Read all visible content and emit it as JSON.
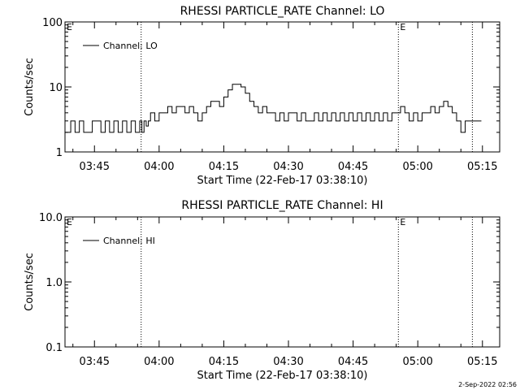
{
  "footer_date": "2-Sep-2022 02:56",
  "chart_data": [
    {
      "type": "line",
      "title": "RHESSI PARTICLE_RATE Channel: LO",
      "xlabel": "Start Time (22-Feb-17 03:38:10)",
      "ylabel": "Counts/sec",
      "yscale": "log",
      "ylim": [
        1,
        100
      ],
      "yticks": [
        "1",
        "10",
        "100"
      ],
      "xlim": [
        "03:38:10",
        "05:19:00"
      ],
      "xticks": [
        "03:45",
        "04:00",
        "04:15",
        "04:30",
        "04:45",
        "05:00",
        "05:15"
      ],
      "grid": false,
      "legend": "top-left",
      "event_lines": [
        "03:55:50",
        "04:55:30",
        "05:12:40"
      ],
      "event_markers": [
        {
          "x": "03:38:10",
          "label": "E"
        },
        {
          "x": "04:55:30",
          "label": "E"
        }
      ],
      "series": [
        {
          "name": "Channel: LO",
          "color": "#000000",
          "x": [
            "03:38:10",
            "03:39:30",
            "03:40:30",
            "03:41:30",
            "03:42:30",
            "03:43:30",
            "03:44:30",
            "03:45:30",
            "03:46:30",
            "03:47:30",
            "03:48:30",
            "03:49:30",
            "03:50:30",
            "03:51:30",
            "03:52:30",
            "03:53:30",
            "03:54:30",
            "03:55:30",
            "03:56:00",
            "03:56:30",
            "03:57:00",
            "03:57:30",
            "03:58:00",
            "03:59:00",
            "04:00:00",
            "04:01:00",
            "04:02:00",
            "04:03:00",
            "04:04:00",
            "04:05:00",
            "04:06:00",
            "04:07:00",
            "04:08:00",
            "04:09:00",
            "04:10:00",
            "04:11:00",
            "04:12:00",
            "04:13:00",
            "04:14:00",
            "04:15:00",
            "04:16:00",
            "04:17:00",
            "04:18:00",
            "04:19:00",
            "04:20:00",
            "04:21:00",
            "04:22:00",
            "04:23:00",
            "04:24:00",
            "04:25:00",
            "04:26:00",
            "04:27:00",
            "04:28:00",
            "04:29:00",
            "04:30:00",
            "04:31:00",
            "04:32:00",
            "04:33:00",
            "04:34:00",
            "04:35:00",
            "04:36:00",
            "04:37:00",
            "04:38:00",
            "04:39:00",
            "04:40:00",
            "04:41:00",
            "04:42:00",
            "04:43:00",
            "04:44:00",
            "04:45:00",
            "04:46:00",
            "04:47:00",
            "04:48:00",
            "04:49:00",
            "04:50:00",
            "04:51:00",
            "04:52:00",
            "04:53:00",
            "04:54:00",
            "04:55:00",
            "04:56:00",
            "04:57:00",
            "04:58:00",
            "04:59:00",
            "05:00:00",
            "05:01:00",
            "05:02:00",
            "05:03:00",
            "05:04:00",
            "05:05:00",
            "05:06:00",
            "05:07:00",
            "05:08:00",
            "05:09:00",
            "05:10:00",
            "05:11:00",
            "05:12:00",
            "05:13:00",
            "05:14:00"
          ],
          "y": [
            2,
            3,
            2,
            3,
            2,
            2,
            3,
            3,
            2,
            3,
            2,
            3,
            2,
            3,
            2,
            3,
            2,
            3,
            2,
            3,
            2.5,
            3,
            4,
            3,
            4,
            4,
            5,
            4,
            5,
            5,
            4,
            5,
            4,
            3,
            4,
            5,
            6,
            6,
            5,
            7,
            9,
            11,
            11,
            10,
            8,
            6,
            5,
            4,
            5,
            4,
            4,
            3,
            4,
            3,
            4,
            4,
            3,
            4,
            3,
            3,
            4,
            3,
            4,
            3,
            4,
            3,
            4,
            3,
            4,
            3,
            4,
            3,
            4,
            3,
            4,
            3,
            4,
            3,
            4,
            4,
            5,
            4,
            3,
            4,
            3,
            4,
            4,
            5,
            4,
            5,
            6,
            5,
            4,
            3,
            2,
            3,
            3,
            3,
            3
          ]
        }
      ]
    },
    {
      "type": "line",
      "title": "RHESSI PARTICLE_RATE Channel: HI",
      "xlabel": "Start Time (22-Feb-17 03:38:10)",
      "ylabel": "Counts/sec",
      "yscale": "log",
      "ylim": [
        0.1,
        10
      ],
      "yticks": [
        "0.1",
        "1.0",
        "10.0"
      ],
      "xlim": [
        "03:38:10",
        "05:19:00"
      ],
      "xticks": [
        "03:45",
        "04:00",
        "04:15",
        "04:30",
        "04:45",
        "05:00",
        "05:15"
      ],
      "grid": false,
      "legend": "top-left",
      "event_lines": [
        "03:55:50",
        "04:55:30",
        "05:12:40"
      ],
      "event_markers": [
        {
          "x": "03:38:10",
          "label": "E"
        },
        {
          "x": "04:55:30",
          "label": "E"
        }
      ],
      "series": [
        {
          "name": "Channel: HI",
          "color": "#000000",
          "x": [],
          "y": []
        }
      ]
    }
  ]
}
